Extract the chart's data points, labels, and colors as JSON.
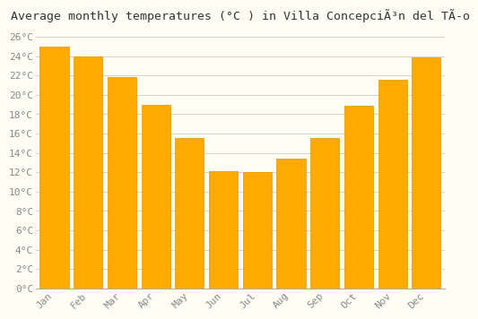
{
  "title": "Average monthly temperatures (°C ) in Villa ConcepciÃ³n del TÃ­o",
  "months": [
    "Jan",
    "Feb",
    "Mar",
    "Apr",
    "May",
    "Jun",
    "Jul",
    "Aug",
    "Sep",
    "Oct",
    "Nov",
    "Dec"
  ],
  "values": [
    25.0,
    24.0,
    21.8,
    19.0,
    15.5,
    12.1,
    12.0,
    13.4,
    15.5,
    18.9,
    21.6,
    23.9
  ],
  "bar_color": "#FFAA00",
  "bar_edge_color": "#E89500",
  "background_color": "#FFFEF5",
  "plot_bg_color": "#FFFEF5",
  "grid_color": "#CCCCCC",
  "ylim": [
    0,
    27
  ],
  "ytick_step": 2,
  "title_fontsize": 9.5,
  "tick_fontsize": 8,
  "tick_color": "#888888",
  "font_family": "monospace",
  "bar_width": 0.85
}
